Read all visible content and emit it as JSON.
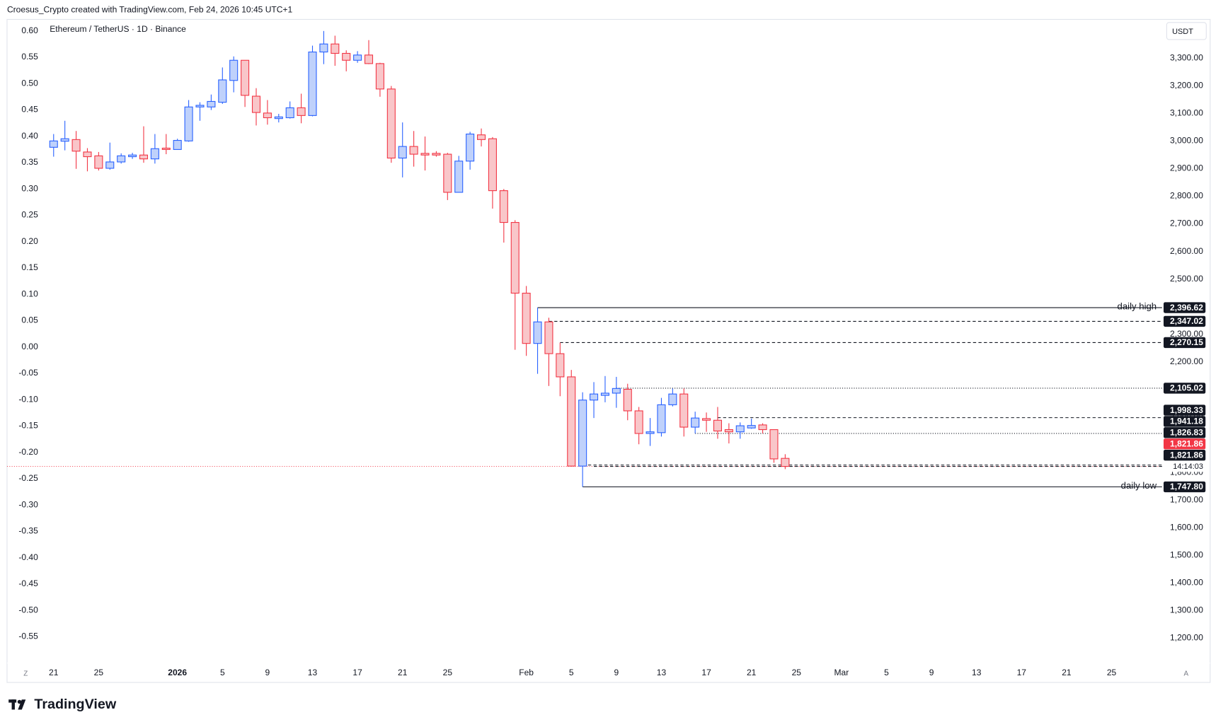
{
  "chart_data": {
    "type": "candlestick",
    "header": "Croesus_Crypto created with TradingView.com, Feb 24, 2026 10:45 UTC+1",
    "title": "Ethereum / TetherUS · 1D · Binance",
    "currency": "USDT",
    "brand": "TradingView",
    "left_corner": "Z",
    "right_corner": "A",
    "up_color": "#2962ff",
    "up_fill": "#bfd1fb",
    "down_color": "#f23645",
    "down_fill": "#f9c6c9",
    "dates": [
      "2025-12-21",
      "2025-12-22",
      "2025-12-23",
      "2025-12-24",
      "2025-12-25",
      "2025-12-26",
      "2025-12-27",
      "2025-12-28",
      "2025-12-29",
      "2025-12-30",
      "2025-12-31",
      "2026-01-01",
      "2026-01-02",
      "2026-01-03",
      "2026-01-04",
      "2026-01-05",
      "2026-01-06",
      "2026-01-07",
      "2026-01-08",
      "2026-01-09",
      "2026-01-10",
      "2026-01-11",
      "2026-01-12",
      "2026-01-13",
      "2026-01-14",
      "2026-01-15",
      "2026-01-16",
      "2026-01-17",
      "2026-01-18",
      "2026-01-19",
      "2026-01-20",
      "2026-01-21",
      "2026-01-22",
      "2026-01-23",
      "2026-01-24",
      "2026-01-25",
      "2026-01-26",
      "2026-01-27",
      "2026-01-28",
      "2026-01-29",
      "2026-01-30",
      "2026-01-31",
      "2026-02-01",
      "2026-02-02",
      "2026-02-03",
      "2026-02-04",
      "2026-02-05",
      "2026-02-06",
      "2026-02-07",
      "2026-02-08",
      "2026-02-09",
      "2026-02-10",
      "2026-02-11",
      "2026-02-12",
      "2026-02-13",
      "2026-02-14",
      "2026-02-15",
      "2026-02-16",
      "2026-02-17",
      "2026-02-18",
      "2026-02-19",
      "2026-02-20",
      "2026-02-21",
      "2026-02-22",
      "2026-02-23",
      "2026-02-24"
    ],
    "open": [
      2977,
      2999,
      3005,
      2960,
      2946,
      2901,
      2924,
      2943,
      2949,
      2935,
      2974,
      2969,
      3000,
      3123,
      3123,
      3140,
      3219,
      3292,
      3162,
      3101,
      3081,
      3084,
      3120,
      3092,
      3322,
      3351,
      3317,
      3292,
      3311,
      3280,
      3188,
      2938,
      2980,
      2955,
      2955,
      2952,
      2814,
      2927,
      3022,
      3008,
      2820,
      2705,
      2449,
      2267,
      2345,
      2230,
      2146,
      1823,
      2062,
      2079,
      2087,
      2101,
      2023,
      1941,
      1944,
      2045,
      2084,
      1964,
      1995,
      1989,
      1955,
      1947,
      1961,
      1972,
      1955,
      1851
    ],
    "high": [
      3025,
      3073,
      3036,
      2974,
      2960,
      2994,
      2955,
      2957,
      3053,
      3025,
      3025,
      3008,
      3148,
      3140,
      3168,
      3266,
      3306,
      3292,
      3191,
      3148,
      3098,
      3143,
      3171,
      3345,
      3398,
      3381,
      3328,
      3325,
      3365,
      3283,
      3199,
      3067,
      3036,
      3016,
      2963,
      2957,
      2946,
      3033,
      3045,
      3014,
      2826,
      2713,
      2475,
      2396.62,
      2360,
      2270,
      2171,
      2090,
      2127,
      2149,
      2146,
      2121,
      2037,
      1997,
      2070,
      2104,
      2104,
      2020,
      2017,
      2037,
      1978,
      1981,
      1995,
      1978,
      1955,
      1866
    ],
    "low": [
      2943,
      2966,
      2899,
      2890,
      2893,
      2896,
      2918,
      2935,
      2921,
      2918,
      2952,
      2969,
      2997,
      3073,
      3112,
      3134,
      3176,
      3123,
      3056,
      3059,
      3067,
      3081,
      3064,
      3089,
      3278,
      3272,
      3252,
      3283,
      3278,
      3160,
      2921,
      2868,
      2907,
      2893,
      2943,
      2786,
      2814,
      2896,
      2980,
      2755,
      2632,
      2244,
      2222,
      2157,
      2113,
      2076,
      1821,
      1747.8,
      1997,
      2054,
      2034,
      1989,
      1902,
      1896,
      1930,
      2039,
      1930,
      1941,
      1947,
      1922,
      1905,
      1922,
      1958,
      1941,
      1835,
      1812
    ],
    "close": [
      3000,
      3008,
      2963,
      2943,
      2901,
      2924,
      2946,
      2949,
      2935,
      2972,
      2969,
      3002,
      3123,
      3129,
      3143,
      3221,
      3292,
      3165,
      3103,
      3084,
      3087,
      3120,
      3092,
      3322,
      3351,
      3317,
      3292,
      3311,
      3280,
      3188,
      2938,
      2980,
      2952,
      2949,
      2949,
      2814,
      2927,
      3025,
      3005,
      2820,
      2705,
      2449,
      2267,
      2345,
      2230,
      2146,
      1823,
      2062,
      2084,
      2087,
      2104,
      2023,
      1941,
      1947,
      2045,
      2084,
      1964,
      1997,
      1989,
      1950,
      1947,
      1969,
      1970,
      1955,
      1849,
      1821.86
    ],
    "xlim": [
      "2025-12-17",
      "2026-03-29"
    ],
    "xticks": [
      {
        "value": "2025-12-21",
        "label": "21"
      },
      {
        "value": "2025-12-25",
        "label": "25"
      },
      {
        "value": "2026-01-01",
        "label": "2026"
      },
      {
        "value": "2026-01-05",
        "label": "5"
      },
      {
        "value": "2026-01-09",
        "label": "9"
      },
      {
        "value": "2026-01-13",
        "label": "13"
      },
      {
        "value": "2026-01-17",
        "label": "17"
      },
      {
        "value": "2026-01-21",
        "label": "21"
      },
      {
        "value": "2026-01-25",
        "label": "25"
      },
      {
        "value": "2026-02-01",
        "label": "Feb"
      },
      {
        "value": "2026-02-05",
        "label": "5"
      },
      {
        "value": "2026-02-09",
        "label": "9"
      },
      {
        "value": "2026-02-13",
        "label": "13"
      },
      {
        "value": "2026-02-17",
        "label": "17"
      },
      {
        "value": "2026-02-21",
        "label": "21"
      },
      {
        "value": "2026-02-25",
        "label": "25"
      },
      {
        "value": "2026-03-01",
        "label": "Mar"
      },
      {
        "value": "2026-03-05",
        "label": "5"
      },
      {
        "value": "2026-03-09",
        "label": "9"
      },
      {
        "value": "2026-03-13",
        "label": "13"
      },
      {
        "value": "2026-03-17",
        "label": "17"
      },
      {
        "value": "2026-03-21",
        "label": "21"
      },
      {
        "value": "2026-03-25",
        "label": "25"
      }
    ],
    "ylim": [
      1110,
      3440
    ],
    "yticks": [
      {
        "value": 1200,
        "label": "1,200.00"
      },
      {
        "value": 1300,
        "label": "1,300.00"
      },
      {
        "value": 1400,
        "label": "1,400.00"
      },
      {
        "value": 1500,
        "label": "1,500.00"
      },
      {
        "value": 1600,
        "label": "1,600.00"
      },
      {
        "value": 1700,
        "label": "1,700.00"
      },
      {
        "value": 1800,
        "label": "1,800.00"
      },
      {
        "value": 1900,
        "label": "1,900.00"
      },
      {
        "value": 2000,
        "label": "2,000.00"
      },
      {
        "value": 2100,
        "label": "2,100.00"
      },
      {
        "value": 2200,
        "label": "2,200.00"
      },
      {
        "value": 2300,
        "label": "2,300.00"
      },
      {
        "value": 2400,
        "label": "2,400.00"
      },
      {
        "value": 2500,
        "label": "2,500.00"
      },
      {
        "value": 2600,
        "label": "2,600.00"
      },
      {
        "value": 2700,
        "label": "2,700.00"
      },
      {
        "value": 2800,
        "label": "2,800.00"
      },
      {
        "value": 2900,
        "label": "2,900.00"
      },
      {
        "value": 3000,
        "label": "3,000.00"
      },
      {
        "value": 3100,
        "label": "3,100.00"
      },
      {
        "value": 3200,
        "label": "3,200.00"
      },
      {
        "value": 3300,
        "label": "3,300.00"
      }
    ],
    "y2lim": [
      -0.6,
      0.622
    ],
    "y2ticks": [
      {
        "value": 0.6,
        "label": "0.60"
      },
      0.55,
      {
        "value": 0.5,
        "label": "0.50"
      },
      0.45,
      {
        "value": 0.4,
        "label": "0.40"
      },
      0.35,
      {
        "value": 0.3,
        "label": "0.30"
      },
      0.25,
      {
        "value": 0.2,
        "label": "0.20"
      },
      0.15,
      {
        "value": 0.1,
        "label": "0.10"
      },
      0.05,
      {
        "value": 0,
        "label": "0.00"
      },
      -0.05,
      {
        "value": -0.1,
        "label": "-0.10"
      },
      -0.15,
      {
        "value": -0.2,
        "label": "-0.20"
      },
      -0.25,
      {
        "value": -0.3,
        "label": "-0.30"
      },
      -0.35,
      {
        "value": -0.4,
        "label": "-0.40"
      },
      -0.45,
      {
        "value": -0.5,
        "label": "-0.50"
      },
      -0.55
    ],
    "levels": [
      {
        "value": 2396.62,
        "label": "2,396.62",
        "style": "solid",
        "start": "2026-02-02",
        "text": "daily high"
      },
      {
        "value": 2347.02,
        "label": "2,347.02",
        "style": "dashed",
        "start": "2026-02-03"
      },
      {
        "value": 2270.15,
        "label": "2,270.15",
        "style": "dashed",
        "start": "2026-02-04"
      },
      {
        "value": 2105.02,
        "label": "2,105.02",
        "style": "dotted",
        "start": "2026-02-09"
      },
      {
        "value": 1998.33,
        "label": "1,998.33",
        "style": "dashed",
        "start": "2026-02-18"
      },
      {
        "value": 1941.18,
        "label": "1,941.18",
        "style": "dotted",
        "start": "2026-02-16"
      },
      {
        "value": 1826.83,
        "label": "1,826.83",
        "style": "dashed",
        "start": "2026-02-06"
      },
      {
        "value": 1821.86,
        "label": "1,821.86",
        "style": "dashed",
        "start": "2026-02-07"
      },
      {
        "value": 1747.8,
        "label": "1,747.80",
        "style": "solid",
        "start": "2026-02-06",
        "text": "daily low"
      }
    ],
    "last_price": {
      "value": 1821.86,
      "label": "1,821.86",
      "countdown": "14:14:03",
      "color": "#f23645"
    }
  }
}
